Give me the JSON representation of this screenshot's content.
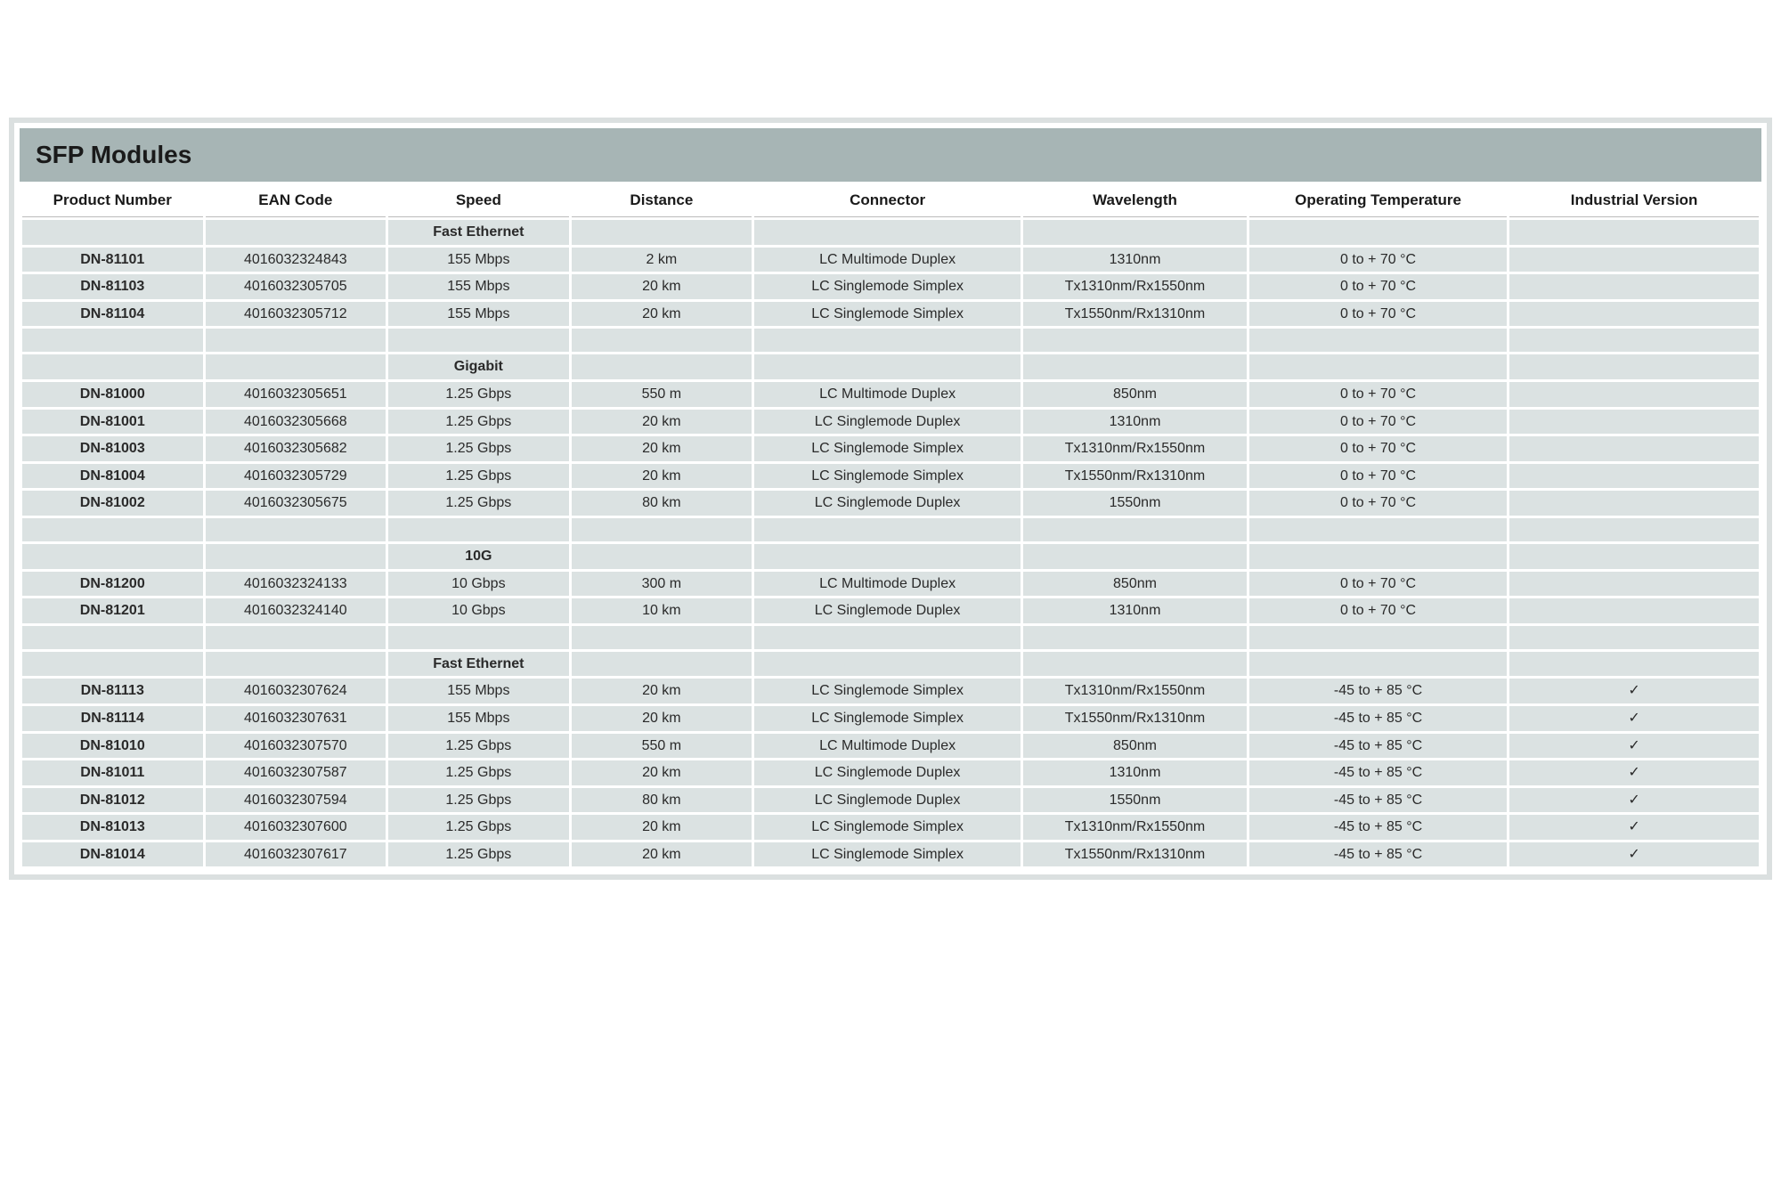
{
  "title": "SFP Modules",
  "columns": [
    "Product Number",
    "EAN Code",
    "Speed",
    "Distance",
    "Connector",
    "Wavelength",
    "Operating Temperature",
    "Industrial Version"
  ],
  "rows": [
    {
      "type": "section",
      "speed": "Fast Ethernet"
    },
    {
      "type": "data",
      "pn": "DN-81101",
      "ean": "4016032324843",
      "speed": "155 Mbps",
      "dist": "2 km",
      "conn": "LC Multimode Duplex",
      "wav": "1310nm",
      "temp": "0 to + 70 °C",
      "ind": ""
    },
    {
      "type": "data",
      "pn": "DN-81103",
      "ean": "4016032305705",
      "speed": "155 Mbps",
      "dist": "20 km",
      "conn": "LC Singlemode Simplex",
      "wav": "Tx1310nm/Rx1550nm",
      "temp": "0 to + 70 °C",
      "ind": ""
    },
    {
      "type": "data",
      "pn": "DN-81104",
      "ean": "4016032305712",
      "speed": "155 Mbps",
      "dist": "20 km",
      "conn": "LC Singlemode Simplex",
      "wav": "Tx1550nm/Rx1310nm",
      "temp": "0 to + 70 °C",
      "ind": ""
    },
    {
      "type": "blank"
    },
    {
      "type": "section",
      "speed": "Gigabit"
    },
    {
      "type": "data",
      "pn": "DN-81000",
      "ean": "4016032305651",
      "speed": "1.25 Gbps",
      "dist": "550 m",
      "conn": "LC Multimode Duplex",
      "wav": "850nm",
      "temp": "0 to + 70 °C",
      "ind": ""
    },
    {
      "type": "data",
      "pn": "DN-81001",
      "ean": "4016032305668",
      "speed": "1.25 Gbps",
      "dist": "20 km",
      "conn": "LC Singlemode Duplex",
      "wav": "1310nm",
      "temp": "0 to + 70 °C",
      "ind": ""
    },
    {
      "type": "data",
      "pn": "DN-81003",
      "ean": "4016032305682",
      "speed": "1.25 Gbps",
      "dist": "20 km",
      "conn": "LC Singlemode Simplex",
      "wav": "Tx1310nm/Rx1550nm",
      "temp": "0 to + 70 °C",
      "ind": ""
    },
    {
      "type": "data",
      "pn": "DN-81004",
      "ean": "4016032305729",
      "speed": "1.25 Gbps",
      "dist": "20 km",
      "conn": "LC Singlemode Simplex",
      "wav": "Tx1550nm/Rx1310nm",
      "temp": "0 to + 70 °C",
      "ind": ""
    },
    {
      "type": "data",
      "pn": "DN-81002",
      "ean": "4016032305675",
      "speed": "1.25 Gbps",
      "dist": "80 km",
      "conn": "LC Singlemode Duplex",
      "wav": "1550nm",
      "temp": "0 to + 70 °C",
      "ind": ""
    },
    {
      "type": "blank"
    },
    {
      "type": "section",
      "speed": "10G"
    },
    {
      "type": "data",
      "pn": "DN-81200",
      "ean": "4016032324133",
      "speed": "10 Gbps",
      "dist": "300 m",
      "conn": "LC Multimode Duplex",
      "wav": "850nm",
      "temp": "0 to + 70 °C",
      "ind": ""
    },
    {
      "type": "data",
      "pn": "DN-81201",
      "ean": "4016032324140",
      "speed": "10 Gbps",
      "dist": "10 km",
      "conn": "LC Singlemode Duplex",
      "wav": "1310nm",
      "temp": "0 to + 70 °C",
      "ind": ""
    },
    {
      "type": "blank"
    },
    {
      "type": "section",
      "speed": "Fast Ethernet"
    },
    {
      "type": "data",
      "pn": "DN-81113",
      "ean": "4016032307624",
      "speed": "155 Mbps",
      "dist": "20 km",
      "conn": "LC Singlemode Simplex",
      "wav": "Tx1310nm/Rx1550nm",
      "temp": "-45 to + 85 °C",
      "ind": "✓"
    },
    {
      "type": "data",
      "pn": "DN-81114",
      "ean": "4016032307631",
      "speed": "155 Mbps",
      "dist": "20 km",
      "conn": "LC Singlemode Simplex",
      "wav": "Tx1550nm/Rx1310nm",
      "temp": "-45 to + 85 °C",
      "ind": "✓"
    },
    {
      "type": "data",
      "pn": "DN-81010",
      "ean": "4016032307570",
      "speed": "1.25 Gbps",
      "dist": "550 m",
      "conn": "LC Multimode Duplex",
      "wav": "850nm",
      "temp": "-45 to + 85 °C",
      "ind": "✓"
    },
    {
      "type": "data",
      "pn": "DN-81011",
      "ean": "4016032307587",
      "speed": "1.25 Gbps",
      "dist": "20 km",
      "conn": "LC Singlemode Duplex",
      "wav": "1310nm",
      "temp": "-45 to + 85 °C",
      "ind": "✓"
    },
    {
      "type": "data",
      "pn": "DN-81012",
      "ean": "4016032307594",
      "speed": "1.25 Gbps",
      "dist": "80 km",
      "conn": "LC Singlemode Duplex",
      "wav": "1550nm",
      "temp": "-45 to + 85 °C",
      "ind": "✓"
    },
    {
      "type": "data",
      "pn": "DN-81013",
      "ean": "4016032307600",
      "speed": "1.25 Gbps",
      "dist": "20 km",
      "conn": "LC Singlemode Simplex",
      "wav": "Tx1310nm/Rx1550nm",
      "temp": "-45 to + 85 °C",
      "ind": "✓"
    },
    {
      "type": "data",
      "pn": "DN-81014",
      "ean": "4016032307617",
      "speed": "1.25 Gbps",
      "dist": "20 km",
      "conn": "LC Singlemode Simplex",
      "wav": "Tx1550nm/Rx1310nm",
      "temp": "-45 to + 85 °C",
      "ind": "✓"
    }
  ],
  "styling": {
    "cell_bg": "#dbe2e2",
    "title_bg": "#a7b5b5",
    "frame_border": "#dbe0e0",
    "text_color": "#2a2a2a",
    "title_fontsize": 28,
    "header_fontsize": 17,
    "cell_fontsize": 16
  }
}
